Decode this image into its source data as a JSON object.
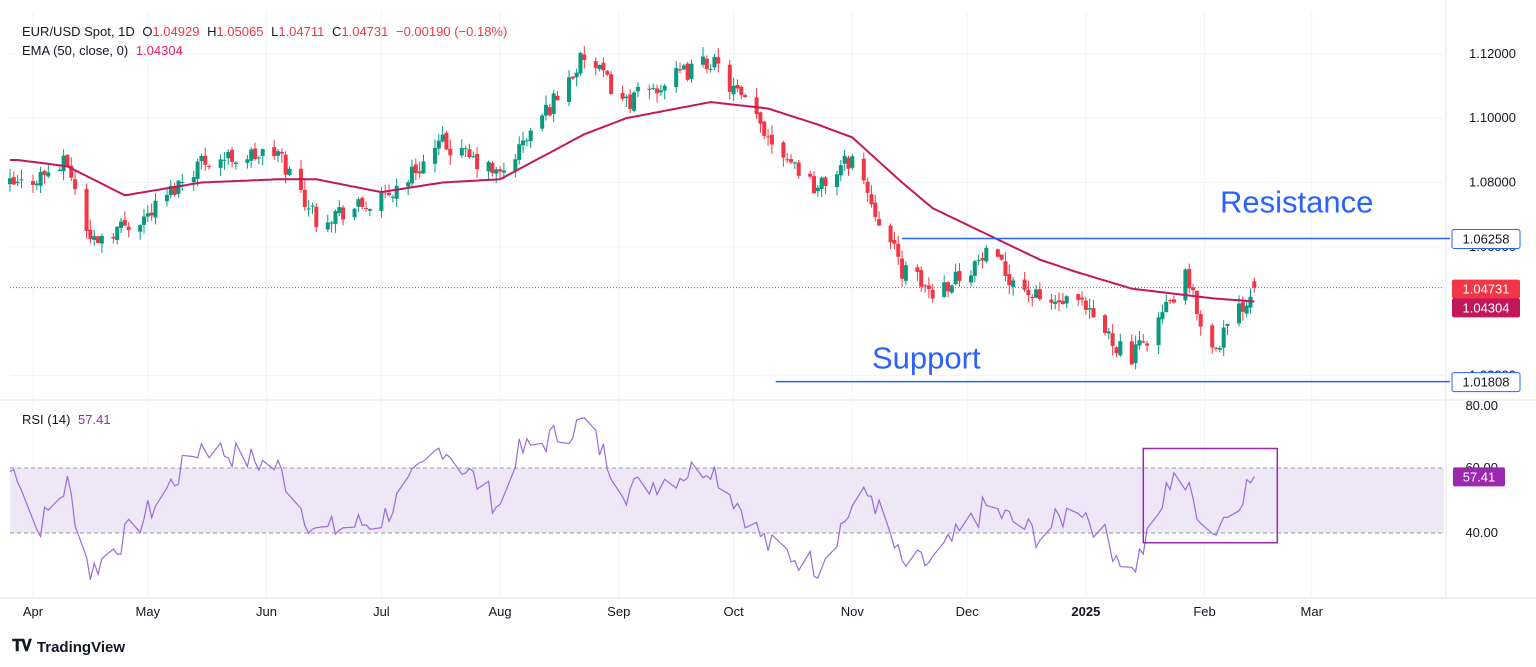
{
  "header": {
    "symbol": "EUR/USD Spot, 1D",
    "o_label": "O",
    "o": "1.04929",
    "h_label": "H",
    "h": "1.05065",
    "l_label": "L",
    "l": "1.04711",
    "c_label": "C",
    "c": "1.04731",
    "change": "−0.00190 (−0.18%)",
    "ema_label": "EMA (50, close, 0)",
    "ema_value": "1.04304",
    "rsi_label": "RSI (14)",
    "rsi_value": "57.41"
  },
  "brand": "TradingView",
  "colors": {
    "up": "#089981",
    "down": "#f23645",
    "ema": "#c2185b",
    "rsi": "#9c6ade",
    "level": "#2962ff",
    "box": "#9c27b0",
    "rsi_band": "#ede7f6"
  },
  "chart_data": [
    {
      "type": "candlestick",
      "title": "EUR/USD Spot, 1D",
      "price_axis_ticks": [
        "1.12000",
        "1.10000",
        "1.08000",
        "1.06000",
        "1.02000"
      ],
      "time_axis_ticks": [
        "Apr",
        "May",
        "Jun",
        "Jul",
        "Aug",
        "Sep",
        "Oct",
        "Nov",
        "Dec",
        "2025",
        "Jan",
        "Feb",
        "Mar"
      ],
      "ylim": [
        1.013,
        1.133
      ],
      "last_price": 1.04731,
      "ema": {
        "name": "EMA (50, close, 0)",
        "last": 1.04304
      },
      "levels": [
        {
          "label": "Resistance",
          "value": 1.06258,
          "value_label": "1.06258"
        },
        {
          "label": "Support",
          "value": 1.01808,
          "value_label": "1.01808"
        }
      ],
      "last_price_label": "1.04731",
      "ema_label": "1.04304",
      "close_series": {
        "dates": [
          "2024-03-28",
          "2024-04-10",
          "2024-04-16",
          "2024-05-01",
          "2024-05-15",
          "2024-06-04",
          "2024-06-14",
          "2024-07-01",
          "2024-07-17",
          "2024-08-01",
          "2024-08-23",
          "2024-09-03",
          "2024-09-25",
          "2024-10-10",
          "2024-10-23",
          "2024-11-01",
          "2024-11-14",
          "2024-11-22",
          "2024-12-06",
          "2024-12-20",
          "2024-12-30",
          "2025-01-13",
          "2025-01-27",
          "2025-02-03",
          "2025-02-14"
        ],
        "values": [
          1.079,
          1.086,
          1.062,
          1.07,
          1.087,
          1.089,
          1.069,
          1.074,
          1.092,
          1.082,
          1.119,
          1.105,
          1.118,
          1.095,
          1.078,
          1.088,
          1.053,
          1.046,
          1.057,
          1.043,
          1.042,
          1.025,
          1.05,
          1.028,
          1.0473
        ]
      },
      "ema_series": {
        "dates": [
          "2024-03-28",
          "2024-04-10",
          "2024-04-25",
          "2024-05-15",
          "2024-06-04",
          "2024-06-14",
          "2024-07-01",
          "2024-07-17",
          "2024-08-01",
          "2024-08-23",
          "2024-09-03",
          "2024-09-25",
          "2024-10-10",
          "2024-10-23",
          "2024-11-01",
          "2024-11-14",
          "2024-11-22",
          "2024-12-06",
          "2024-12-20",
          "2024-12-30",
          "2025-01-13",
          "2025-01-27",
          "2025-02-03",
          "2025-02-14"
        ],
        "values": [
          1.087,
          1.085,
          1.076,
          1.08,
          1.081,
          1.081,
          1.077,
          1.08,
          1.081,
          1.095,
          1.1,
          1.105,
          1.103,
          1.098,
          1.094,
          1.08,
          1.072,
          1.064,
          1.056,
          1.052,
          1.047,
          1.045,
          1.044,
          1.043
        ]
      }
    },
    {
      "type": "line",
      "title": "RSI (14)",
      "ylim": [
        20,
        80
      ],
      "band": [
        40,
        60
      ],
      "y_ticks": [
        "80.00",
        "60.00",
        "40.00"
      ],
      "last": 57.41,
      "last_label": "57.41",
      "dates": [
        "2024-03-28",
        "2024-04-02",
        "2024-04-10",
        "2024-04-16",
        "2024-05-01",
        "2024-05-15",
        "2024-06-04",
        "2024-06-14",
        "2024-07-01",
        "2024-07-17",
        "2024-08-01",
        "2024-08-05",
        "2024-08-23",
        "2024-09-03",
        "2024-09-25",
        "2024-10-10",
        "2024-10-23",
        "2024-11-01",
        "2024-11-06",
        "2024-11-14",
        "2024-11-22",
        "2024-12-06",
        "2024-12-20",
        "2024-12-30",
        "2025-01-13",
        "2025-01-20",
        "2025-01-24",
        "2025-02-03",
        "2025-02-14"
      ],
      "values": [
        59,
        41,
        55,
        28,
        46,
        67,
        60,
        40,
        44,
        67,
        48,
        64,
        74,
        53,
        61,
        36,
        30,
        48,
        52,
        30,
        31,
        48,
        39,
        49,
        28,
        45,
        60,
        40,
        57.41
      ]
    }
  ]
}
